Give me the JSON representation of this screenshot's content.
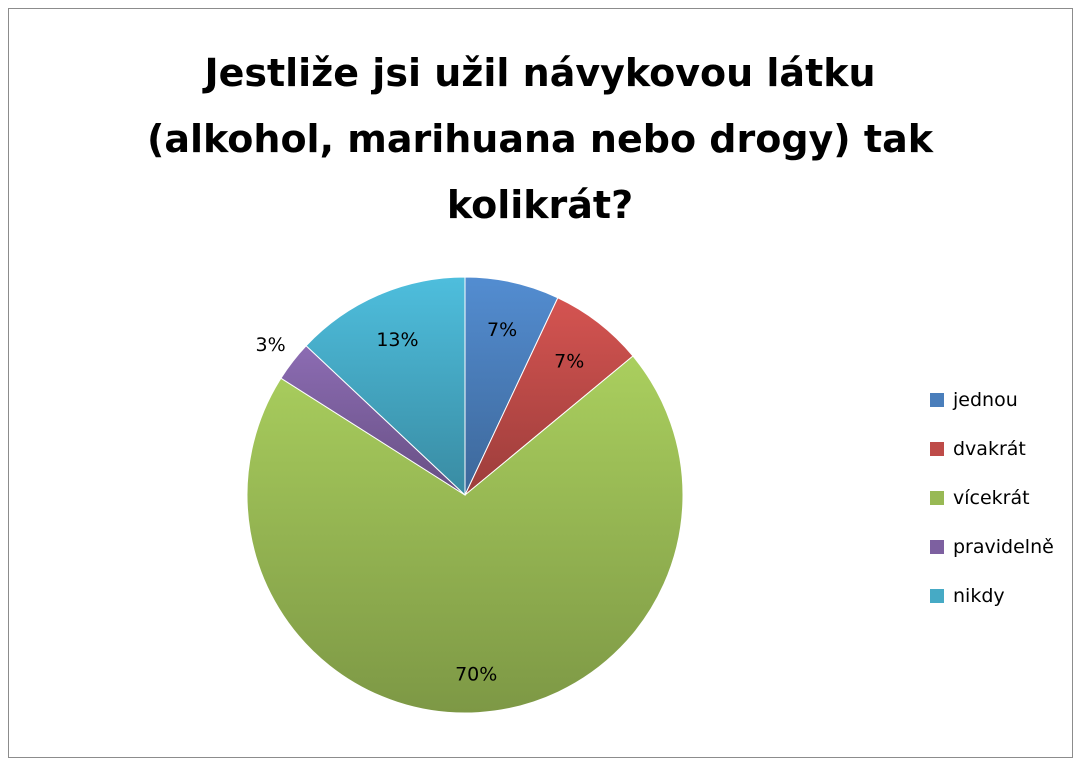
{
  "chart_data": {
    "type": "pie",
    "title_lines": [
      "Jestliže jsi užil návykovou látku",
      "(alkohol, marihuana nebo drogy) tak",
      "kolikrát?"
    ],
    "categories": [
      "jednou",
      "dvakrát",
      "vícekrát",
      "pravidelně",
      "nikdy"
    ],
    "values": [
      7,
      7,
      70,
      3,
      13
    ],
    "data_labels": [
      "7%",
      "7%",
      "70%",
      "3%",
      "13%"
    ],
    "colors": [
      "#4a7ebb",
      "#be4b48",
      "#98b954",
      "#7d60a0",
      "#46aac5"
    ],
    "legend_position": "right"
  }
}
